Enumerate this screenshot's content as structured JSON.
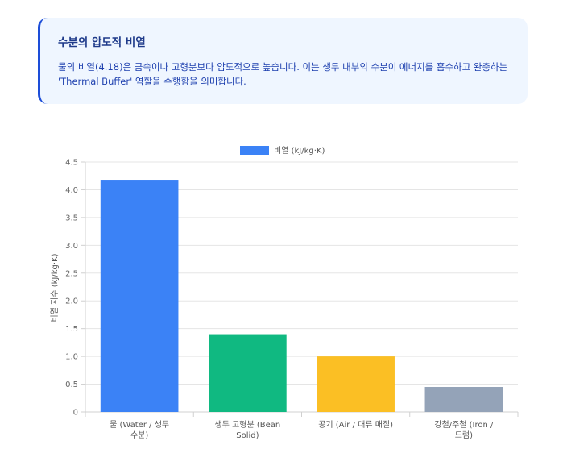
{
  "info": {
    "title": "수분의 압도적 비열",
    "body": "물의 비열(4.18)은 금속이나 고형분보다 압도적으로 높습니다. 이는 생두 내부의 수분이 에너지를 흡수하고 완충하는 'Thermal Buffer' 역할을 수행함을 의미합니다."
  },
  "chart_data": {
    "type": "bar",
    "categories": [
      [
        "물 (Water / 생두",
        "수분)"
      ],
      [
        "생두 고형분 (Bean",
        "Solid)"
      ],
      [
        "공기 (Air / 대류 매질)"
      ],
      [
        "강철/주철 (Iron /",
        "드럼)"
      ]
    ],
    "series": [
      {
        "name": "비열 (kJ/kg·K)",
        "values": [
          4.18,
          1.4,
          1.0,
          0.45
        ],
        "colors": [
          "#3b82f6",
          "#10b981",
          "#fbbf24",
          "#94a3b8"
        ]
      }
    ],
    "ylabel": "비열 지수 (kJ/kg·K)",
    "xlabel": "",
    "ylim": [
      0,
      4.5
    ],
    "yticks": [
      0,
      0.5,
      1.0,
      1.5,
      2.0,
      2.5,
      3.0,
      3.5,
      4.0,
      4.5
    ],
    "ytick_labels": [
      "0",
      "0.5",
      "1.0",
      "1.5",
      "2.0",
      "2.5",
      "3.0",
      "3.5",
      "4.0",
      "4.5"
    ],
    "legend_position": "top-center",
    "grid": true,
    "legend_color": "#3b82f6"
  }
}
